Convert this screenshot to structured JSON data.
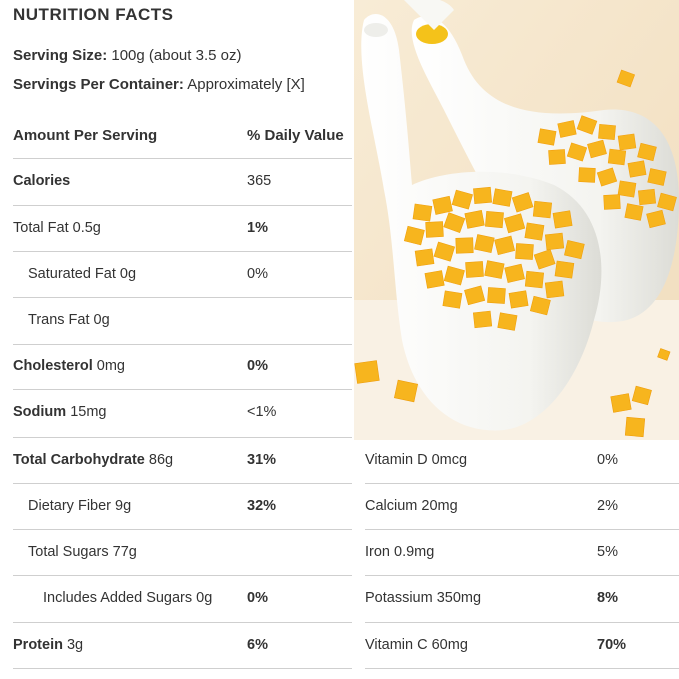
{
  "title": "NUTRITION FACTS",
  "serving_size": {
    "label": "Serving Size:",
    "value": "100g (about 3.5 oz)"
  },
  "servings_per_container": {
    "label": "Servings Per Container:",
    "value": "Approximately [X]"
  },
  "headers": {
    "amount": "Amount Per Serving",
    "daily": "% Daily Value"
  },
  "left_rows": [
    {
      "name": "Calories",
      "amount": "",
      "dv": "365",
      "name_bold": true,
      "dv_bold": false,
      "indent": 0
    },
    {
      "name": "Total Fat",
      "amount": " 0.5g",
      "dv": "1%",
      "name_bold": false,
      "dv_bold": true,
      "indent": 0
    },
    {
      "name": "Saturated Fat",
      "amount": " 0g",
      "dv": "0%",
      "name_bold": false,
      "dv_bold": false,
      "indent": 1
    },
    {
      "name": "Trans Fat",
      "amount": " 0g",
      "dv": "",
      "name_bold": false,
      "dv_bold": false,
      "indent": 1
    },
    {
      "name": "Cholesterol",
      "amount": " 0mg",
      "dv": "0%",
      "name_bold": true,
      "dv_bold": true,
      "indent": 0
    },
    {
      "name": "Sodium",
      "amount": " 15mg",
      "dv": "<1%",
      "name_bold": true,
      "dv_bold": false,
      "indent": 0
    },
    {
      "name": "Total Carbohydrate",
      "amount": " 86g",
      "dv": "31%",
      "name_bold": true,
      "dv_bold": true,
      "indent": 0
    },
    {
      "name": "Dietary Fiber",
      "amount": " 9g",
      "dv": "32%",
      "name_bold": false,
      "dv_bold": true,
      "indent": 1
    },
    {
      "name": "Total Sugars",
      "amount": " 77g",
      "dv": "",
      "name_bold": false,
      "dv_bold": false,
      "indent": 1
    },
    {
      "name": "Includes Added Sugars",
      "amount": " 0g",
      "dv": "0%",
      "name_bold": false,
      "dv_bold": true,
      "indent": 2
    },
    {
      "name": "Protein",
      "amount": " 3g",
      "dv": "6%",
      "name_bold": true,
      "dv_bold": true,
      "indent": 0
    }
  ],
  "right_rows": [
    {
      "name": "Vitamin D 0mcg",
      "dv": "0%",
      "dv_bold": false
    },
    {
      "name": "Calcium 20mg",
      "dv": "2%",
      "dv_bold": false
    },
    {
      "name": "Iron 0.9mg",
      "dv": "5%",
      "dv_bold": false
    },
    {
      "name": "Potassium 350mg",
      "dv": "8%",
      "dv_bold": true
    },
    {
      "name": "Vitamin C 60mg",
      "dv": "70%",
      "dv_bold": true
    }
  ],
  "colors": {
    "mango": "#f7b51e",
    "ceramic": "#fbfbf8",
    "background": "#f6e6c9",
    "beak": "#f4c21a"
  }
}
